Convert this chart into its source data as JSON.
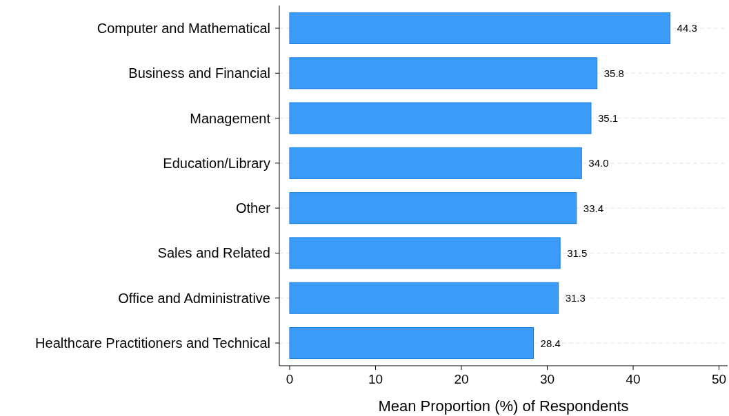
{
  "chart_data": {
    "type": "bar",
    "orientation": "horizontal",
    "xlabel": "Mean Proportion (%) of Respondents",
    "categories": [
      "Computer and Mathematical",
      "Business and Financial",
      "Management",
      "Education/Library",
      "Other",
      "Sales and Related",
      "Office and Administrative",
      "Healthcare Practitioners and Technical"
    ],
    "values": [
      44.3,
      35.8,
      35.1,
      34.0,
      33.4,
      31.5,
      31.3,
      28.4
    ],
    "value_labels": [
      "44.3",
      "35.8",
      "35.1",
      "34.0",
      "33.4",
      "31.5",
      "31.3",
      "28.4"
    ],
    "color": "#3a9bf9",
    "xlim": [
      -1.2,
      51
    ],
    "xticks": [
      0,
      10,
      20,
      30,
      40,
      50
    ],
    "grid": "y"
  }
}
